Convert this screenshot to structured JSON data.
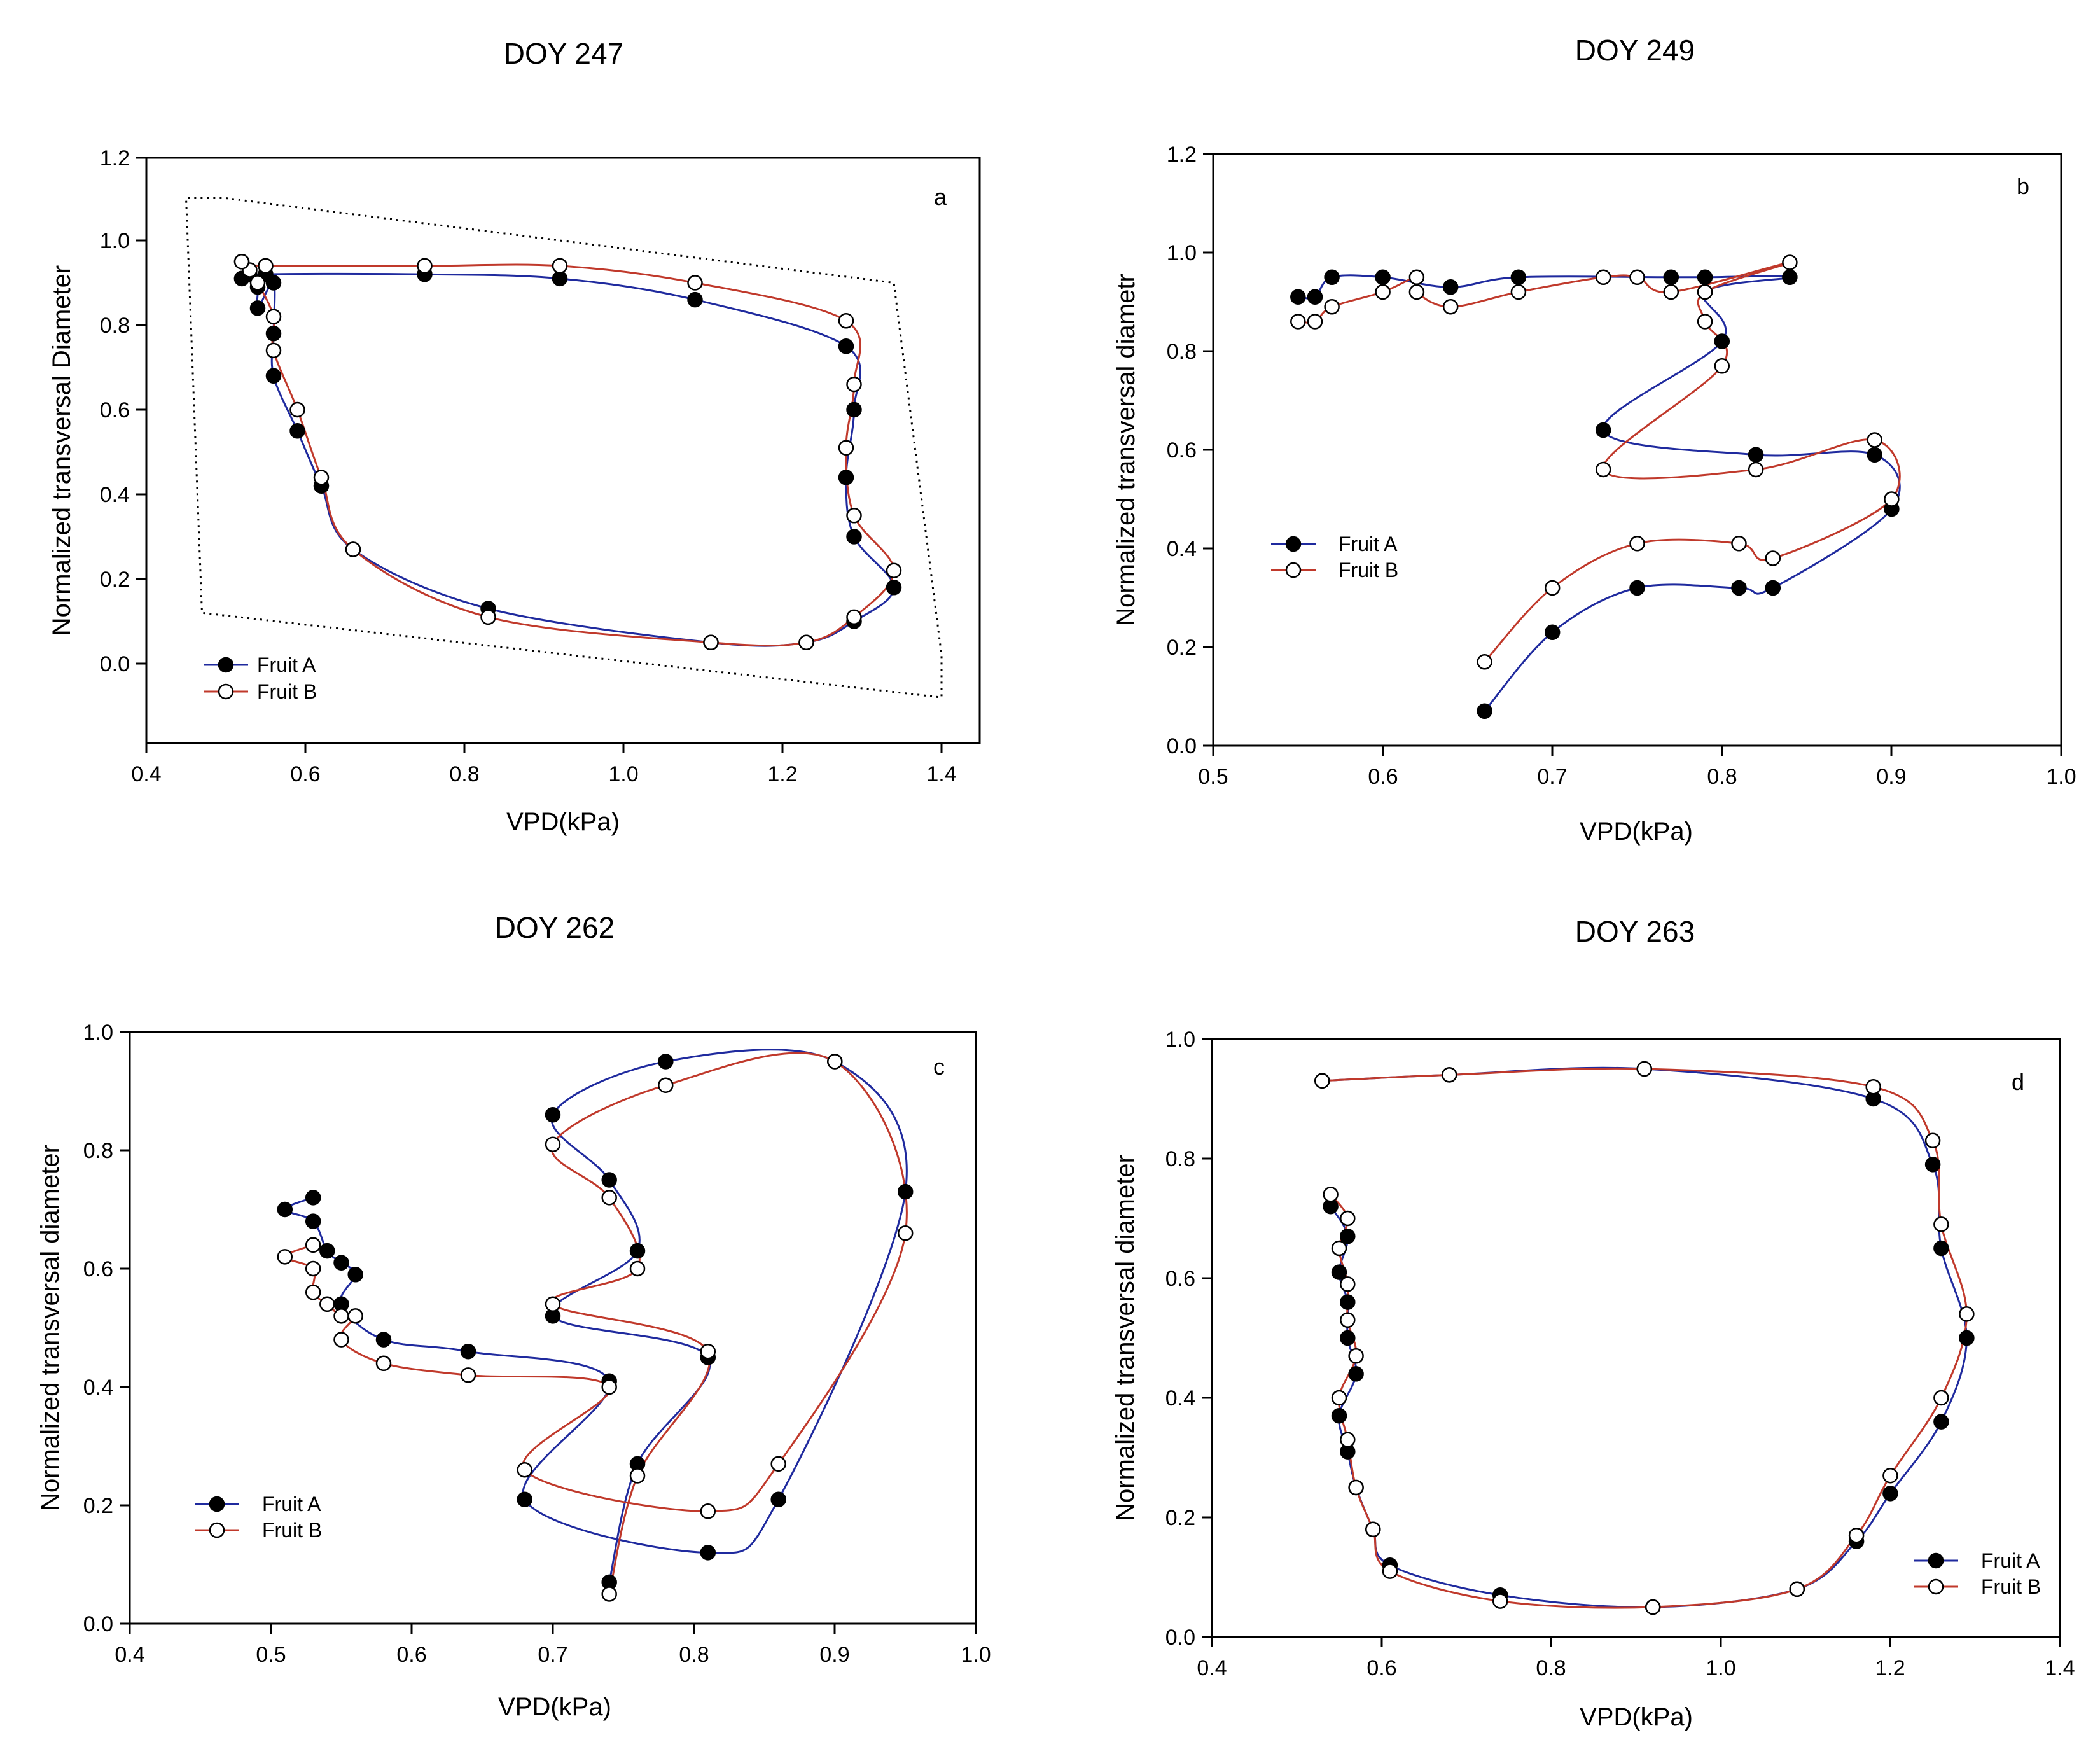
{
  "chart_data": [
    {
      "type": "line",
      "panel": "a",
      "title": "DOY 247",
      "xlabel": "VPD(kPa)",
      "ylabel": "Normalized transversal Diameter",
      "xlim": [
        0.4,
        1.45
      ],
      "ylim": [
        -0.15,
        1.2
      ],
      "xticks": [
        0.4,
        0.6,
        0.8,
        1.0,
        1.2,
        1.4
      ],
      "yticks": [
        0.0,
        0.2,
        0.4,
        0.6,
        0.8,
        1.0,
        1.2
      ],
      "legend_position": "bottom-left",
      "series": [
        {
          "name": "Fruit A",
          "color": "#1f2a9e",
          "marker": "filled-circle",
          "points": [
            [
              0.52,
              0.91
            ],
            [
              0.53,
              0.92
            ],
            [
              0.54,
              0.89
            ],
            [
              0.54,
              0.84
            ],
            [
              0.56,
              0.9
            ],
            [
              0.56,
              0.78
            ],
            [
              0.56,
              0.68
            ],
            [
              0.59,
              0.55
            ],
            [
              0.62,
              0.42
            ],
            [
              0.66,
              0.27
            ],
            [
              0.83,
              0.13
            ],
            [
              1.11,
              0.05
            ],
            [
              1.23,
              0.05
            ],
            [
              1.29,
              0.1
            ],
            [
              1.34,
              0.18
            ],
            [
              1.29,
              0.3
            ],
            [
              1.28,
              0.44
            ],
            [
              1.29,
              0.6
            ],
            [
              1.28,
              0.75
            ],
            [
              1.09,
              0.86
            ],
            [
              0.92,
              0.91
            ],
            [
              0.75,
              0.92
            ],
            [
              0.55,
              0.92
            ],
            [
              0.52,
              0.91
            ]
          ]
        },
        {
          "name": "Fruit B",
          "color": "#c0392b",
          "marker": "open-circle",
          "points": [
            [
              0.52,
              0.95
            ],
            [
              0.53,
              0.93
            ],
            [
              0.54,
              0.9
            ],
            [
              0.56,
              0.82
            ],
            [
              0.56,
              0.74
            ],
            [
              0.59,
              0.6
            ],
            [
              0.62,
              0.44
            ],
            [
              0.66,
              0.27
            ],
            [
              0.83,
              0.11
            ],
            [
              1.11,
              0.05
            ],
            [
              1.23,
              0.05
            ],
            [
              1.29,
              0.11
            ],
            [
              1.34,
              0.22
            ],
            [
              1.29,
              0.35
            ],
            [
              1.28,
              0.51
            ],
            [
              1.29,
              0.66
            ],
            [
              1.28,
              0.81
            ],
            [
              1.09,
              0.9
            ],
            [
              0.92,
              0.94
            ],
            [
              0.75,
              0.94
            ],
            [
              0.55,
              0.94
            ],
            [
              0.52,
              0.95
            ]
          ]
        }
      ],
      "annotations": [
        {
          "type": "dotted-trend-box",
          "path": [
            [
              0.5,
              1.1
            ],
            [
              1.34,
              0.9
            ],
            [
              1.4,
              0.02
            ],
            [
              1.4,
              -0.08
            ],
            [
              0.47,
              0.12
            ],
            [
              0.45,
              1.1
            ]
          ]
        }
      ]
    },
    {
      "type": "line",
      "panel": "b",
      "title": "DOY 249",
      "xlabel": "VPD(kPa)",
      "ylabel": "Normalized transversal diametr",
      "xlim": [
        0.5,
        1.0
      ],
      "ylim": [
        0.0,
        1.2
      ],
      "xticks": [
        0.5,
        0.6,
        0.7,
        0.8,
        0.9,
        1.0
      ],
      "yticks": [
        0.0,
        0.2,
        0.4,
        0.6,
        0.8,
        1.0,
        1.2
      ],
      "legend_position": "middle-left",
      "series": [
        {
          "name": "Fruit A",
          "color": "#1f2a9e",
          "marker": "filled-circle",
          "points": [
            [
              0.55,
              0.91
            ],
            [
              0.56,
              0.91
            ],
            [
              0.57,
              0.95
            ],
            [
              0.6,
              0.95
            ],
            [
              0.64,
              0.93
            ],
            [
              0.68,
              0.95
            ],
            [
              0.77,
              0.95
            ],
            [
              0.79,
              0.95
            ],
            [
              0.84,
              0.95
            ],
            [
              0.79,
              0.92
            ],
            [
              0.8,
              0.82
            ],
            [
              0.73,
              0.64
            ],
            [
              0.82,
              0.59
            ],
            [
              0.89,
              0.59
            ],
            [
              0.9,
              0.48
            ],
            [
              0.83,
              0.32
            ],
            [
              0.81,
              0.32
            ],
            [
              0.75,
              0.32
            ],
            [
              0.7,
              0.23
            ],
            [
              0.66,
              0.07
            ]
          ]
        },
        {
          "name": "Fruit B",
          "color": "#c0392b",
          "marker": "open-circle",
          "points": [
            [
              0.55,
              0.86
            ],
            [
              0.56,
              0.86
            ],
            [
              0.57,
              0.89
            ],
            [
              0.6,
              0.92
            ],
            [
              0.62,
              0.95
            ],
            [
              0.62,
              0.92
            ],
            [
              0.64,
              0.89
            ],
            [
              0.68,
              0.92
            ],
            [
              0.73,
              0.95
            ],
            [
              0.75,
              0.95
            ],
            [
              0.77,
              0.92
            ],
            [
              0.84,
              0.98
            ],
            [
              0.79,
              0.92
            ],
            [
              0.79,
              0.86
            ],
            [
              0.8,
              0.77
            ],
            [
              0.73,
              0.56
            ],
            [
              0.82,
              0.56
            ],
            [
              0.89,
              0.62
            ],
            [
              0.9,
              0.5
            ],
            [
              0.83,
              0.38
            ],
            [
              0.81,
              0.41
            ],
            [
              0.75,
              0.41
            ],
            [
              0.7,
              0.32
            ],
            [
              0.66,
              0.17
            ]
          ]
        }
      ]
    },
    {
      "type": "line",
      "panel": "c",
      "title": "DOY 262",
      "xlabel": "VPD(kPa)",
      "ylabel": "Normalized transversal diameter",
      "xlim": [
        0.4,
        1.0
      ],
      "ylim": [
        0.0,
        1.0
      ],
      "xticks": [
        0.4,
        0.5,
        0.6,
        0.7,
        0.8,
        0.9,
        1.0
      ],
      "yticks": [
        0.0,
        0.2,
        0.4,
        0.6,
        0.8,
        1.0
      ],
      "legend_position": "bottom-left",
      "series": [
        {
          "name": "Fruit A",
          "color": "#1f2a9e",
          "marker": "filled-circle",
          "points": [
            [
              0.53,
              0.72
            ],
            [
              0.51,
              0.7
            ],
            [
              0.53,
              0.68
            ],
            [
              0.54,
              0.63
            ],
            [
              0.55,
              0.61
            ],
            [
              0.56,
              0.59
            ],
            [
              0.55,
              0.54
            ],
            [
              0.58,
              0.48
            ],
            [
              0.64,
              0.46
            ],
            [
              0.74,
              0.41
            ],
            [
              0.68,
              0.21
            ],
            [
              0.81,
              0.12
            ],
            [
              0.86,
              0.21
            ],
            [
              0.95,
              0.73
            ],
            [
              0.9,
              0.95
            ],
            [
              0.78,
              0.95
            ],
            [
              0.7,
              0.86
            ],
            [
              0.74,
              0.75
            ],
            [
              0.76,
              0.63
            ],
            [
              0.7,
              0.52
            ],
            [
              0.81,
              0.45
            ],
            [
              0.76,
              0.27
            ],
            [
              0.74,
              0.07
            ]
          ]
        },
        {
          "name": "Fruit B",
          "color": "#c0392b",
          "marker": "open-circle",
          "points": [
            [
              0.53,
              0.64
            ],
            [
              0.51,
              0.62
            ],
            [
              0.53,
              0.6
            ],
            [
              0.53,
              0.56
            ],
            [
              0.54,
              0.54
            ],
            [
              0.55,
              0.52
            ],
            [
              0.56,
              0.52
            ],
            [
              0.55,
              0.48
            ],
            [
              0.58,
              0.44
            ],
            [
              0.64,
              0.42
            ],
            [
              0.74,
              0.4
            ],
            [
              0.68,
              0.26
            ],
            [
              0.81,
              0.19
            ],
            [
              0.86,
              0.27
            ],
            [
              0.95,
              0.66
            ],
            [
              0.9,
              0.95
            ],
            [
              0.78,
              0.91
            ],
            [
              0.7,
              0.81
            ],
            [
              0.74,
              0.72
            ],
            [
              0.76,
              0.6
            ],
            [
              0.7,
              0.54
            ],
            [
              0.81,
              0.46
            ],
            [
              0.76,
              0.25
            ],
            [
              0.74,
              0.05
            ]
          ]
        }
      ]
    },
    {
      "type": "line",
      "panel": "d",
      "title": "DOY 263",
      "xlabel": "VPD(kPa)",
      "ylabel": "Normalized transversal diameter",
      "xlim": [
        0.4,
        1.4
      ],
      "ylim": [
        0.0,
        1.0
      ],
      "xticks": [
        0.4,
        0.6,
        0.8,
        1.0,
        1.2,
        1.4
      ],
      "yticks": [
        0.0,
        0.2,
        0.4,
        0.6,
        0.8,
        1.0
      ],
      "legend_position": "bottom-right",
      "series": [
        {
          "name": "Fruit A",
          "color": "#1f2a9e",
          "marker": "filled-circle",
          "points": [
            [
              0.54,
              0.72
            ],
            [
              0.56,
              0.67
            ],
            [
              0.55,
              0.61
            ],
            [
              0.56,
              0.56
            ],
            [
              0.56,
              0.5
            ],
            [
              0.57,
              0.44
            ],
            [
              0.55,
              0.37
            ],
            [
              0.56,
              0.31
            ],
            [
              0.57,
              0.25
            ],
            [
              0.59,
              0.18
            ],
            [
              0.61,
              0.12
            ],
            [
              0.74,
              0.07
            ],
            [
              0.92,
              0.05
            ],
            [
              1.09,
              0.08
            ],
            [
              1.16,
              0.16
            ],
            [
              1.2,
              0.24
            ],
            [
              1.26,
              0.36
            ],
            [
              1.29,
              0.5
            ],
            [
              1.26,
              0.65
            ],
            [
              1.25,
              0.79
            ],
            [
              1.18,
              0.9
            ],
            [
              0.91,
              0.95
            ],
            [
              0.68,
              0.94
            ],
            [
              0.53,
              0.93
            ]
          ]
        },
        {
          "name": "Fruit B",
          "color": "#c0392b",
          "marker": "open-circle",
          "points": [
            [
              0.54,
              0.74
            ],
            [
              0.56,
              0.7
            ],
            [
              0.55,
              0.65
            ],
            [
              0.56,
              0.59
            ],
            [
              0.56,
              0.53
            ],
            [
              0.57,
              0.47
            ],
            [
              0.55,
              0.4
            ],
            [
              0.56,
              0.33
            ],
            [
              0.57,
              0.25
            ],
            [
              0.59,
              0.18
            ],
            [
              0.61,
              0.11
            ],
            [
              0.74,
              0.06
            ],
            [
              0.92,
              0.05
            ],
            [
              1.09,
              0.08
            ],
            [
              1.16,
              0.17
            ],
            [
              1.2,
              0.27
            ],
            [
              1.26,
              0.4
            ],
            [
              1.29,
              0.54
            ],
            [
              1.26,
              0.69
            ],
            [
              1.25,
              0.83
            ],
            [
              1.18,
              0.92
            ],
            [
              0.91,
              0.95
            ],
            [
              0.68,
              0.94
            ],
            [
              0.53,
              0.93
            ]
          ]
        }
      ]
    }
  ]
}
